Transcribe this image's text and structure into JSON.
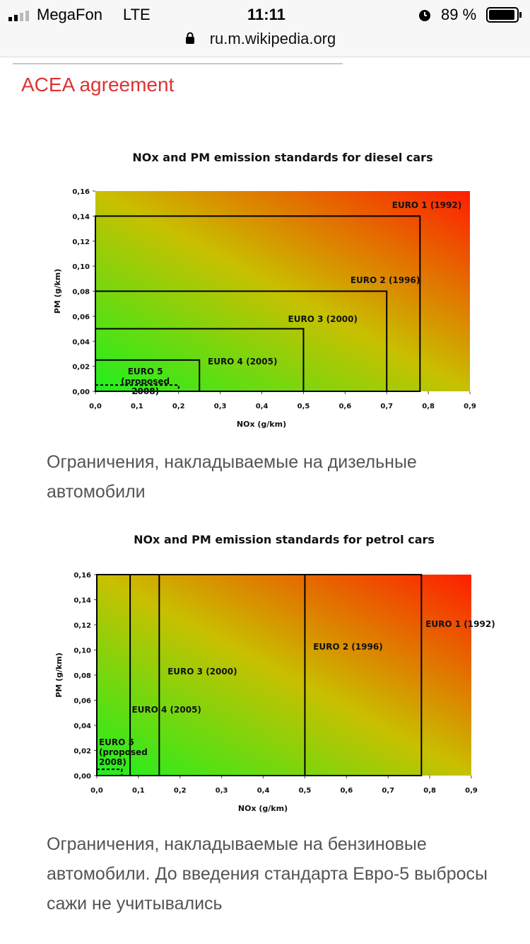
{
  "status_bar": {
    "carrier": "MegaFon",
    "network": "LTE",
    "time": "11:11",
    "battery": "89 %"
  },
  "url": "ru.m.wikipedia.org",
  "section_title": "ACEA agreement",
  "chart_data": [
    {
      "type": "region",
      "title": "NOx and PM emission standards for diesel cars",
      "x_label": "NOx (g/km)",
      "y_label": "PM (g/km)",
      "categories": [
        "EURO 1 (1992)",
        "EURO 2 (1996)",
        "EURO 3 (2000)",
        "EURO 4 (2005)",
        "EURO 5 (proposed 2008)"
      ],
      "nox": [
        0.78,
        0.7,
        0.5,
        0.25,
        0.2
      ],
      "pm": [
        0.14,
        0.08,
        0.05,
        0.025,
        0.005
      ],
      "line_styles": [
        "solid",
        "solid",
        "solid",
        "solid",
        "dashed"
      ],
      "xlim": [
        0,
        0.9
      ],
      "ylim": [
        0,
        0.16
      ],
      "xticks": [
        {
          "value": 0,
          "label": "0,0"
        },
        {
          "value": 0.1,
          "label": "0,1"
        },
        {
          "value": 0.2,
          "label": "0,2"
        },
        {
          "value": 0.3,
          "label": "0,3"
        },
        {
          "value": 0.4,
          "label": "0,4"
        },
        {
          "value": 0.5,
          "label": "0,5"
        },
        {
          "value": 0.6,
          "label": "0,6"
        },
        {
          "value": 0.7,
          "label": "0,7"
        },
        {
          "value": 0.8,
          "label": "0,8"
        },
        {
          "value": 0.9,
          "label": "0,9"
        }
      ],
      "yticks": [
        {
          "value": 0,
          "label": "0,00"
        },
        {
          "value": 0.02,
          "label": "0,02"
        },
        {
          "value": 0.04,
          "label": "0,04"
        },
        {
          "value": 0.06,
          "label": "0,06"
        },
        {
          "value": 0.08,
          "label": "0,08"
        },
        {
          "value": 0.1,
          "label": "0,10"
        },
        {
          "value": 0.12,
          "label": "0,12"
        },
        {
          "value": 0.14,
          "label": "0,14"
        },
        {
          "value": 0.16,
          "label": "0,16"
        }
      ],
      "gradient": [
        "#1ef01e",
        "#c8c000",
        "#ff1e00"
      ]
    },
    {
      "type": "region",
      "title": "NOx and PM emission standards for petrol cars",
      "x_label": "NOx (g/km)",
      "y_label": "PM (g/km)",
      "categories": [
        "EURO 1 (1992)",
        "EURO 2 (1996)",
        "EURO 3 (2000)",
        "EURO 4 (2005)",
        "EURO 5 (proposed 2008)"
      ],
      "nox": [
        0.78,
        0.5,
        0.15,
        0.08,
        0.06
      ],
      "pm": [
        null,
        null,
        null,
        null,
        0.005
      ],
      "line_styles": [
        "solid",
        "solid",
        "solid",
        "solid",
        "dashed"
      ],
      "xlim": [
        0,
        0.9
      ],
      "ylim": [
        0,
        0.16
      ],
      "xticks": [
        {
          "value": 0,
          "label": "0,0"
        },
        {
          "value": 0.1,
          "label": "0,1"
        },
        {
          "value": 0.2,
          "label": "0,2"
        },
        {
          "value": 0.3,
          "label": "0,3"
        },
        {
          "value": 0.4,
          "label": "0,4"
        },
        {
          "value": 0.5,
          "label": "0,5"
        },
        {
          "value": 0.6,
          "label": "0,6"
        },
        {
          "value": 0.7,
          "label": "0,7"
        },
        {
          "value": 0.8,
          "label": "0,8"
        },
        {
          "value": 0.9,
          "label": "0,9"
        }
      ],
      "yticks": [
        {
          "value": 0,
          "label": "0,00"
        },
        {
          "value": 0.02,
          "label": "0,02"
        },
        {
          "value": 0.04,
          "label": "0,04"
        },
        {
          "value": 0.06,
          "label": "0,06"
        },
        {
          "value": 0.08,
          "label": "0,08"
        },
        {
          "value": 0.1,
          "label": "0,10"
        },
        {
          "value": 0.12,
          "label": "0,12"
        },
        {
          "value": 0.14,
          "label": "0,14"
        },
        {
          "value": 0.16,
          "label": "0,16"
        }
      ],
      "gradient": [
        "#1ef01e",
        "#c8c000",
        "#ff1e00"
      ]
    }
  ],
  "captions": [
    "Ограничения, накладываемые на дизельные автомобили",
    "Ограничения, накладываемые на бензиновые автомобили. До введения стандарта Евро-5 выбросы сажи не учитывались"
  ]
}
